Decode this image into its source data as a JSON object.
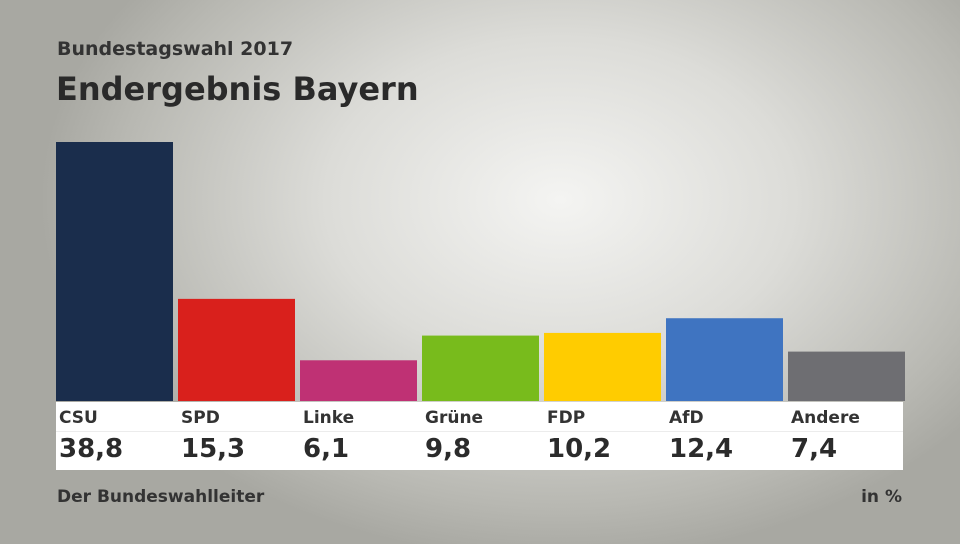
{
  "subtitle": "Bundestagswahl 2017",
  "title": "Endergebnis Bayern",
  "source": "Der Bundeswahlleiter",
  "unit": "in %",
  "chart_data": {
    "type": "bar",
    "title": "Endergebnis Bayern",
    "subtitle": "Bundestagswahl 2017",
    "categories": [
      "CSU",
      "SPD",
      "Linke",
      "Grüne",
      "FDP",
      "AfD",
      "Andere"
    ],
    "values": [
      38.8,
      15.3,
      6.1,
      9.8,
      10.2,
      12.4,
      7.4
    ],
    "value_labels": [
      "38,8",
      "15,3",
      "6,1",
      "9,8",
      "10,2",
      "12,4",
      "7,4"
    ],
    "colors": [
      "#1a2d4c",
      "#d9201c",
      "#bf3174",
      "#78bb1c",
      "#ffcc00",
      "#3f74c1",
      "#6e6e72"
    ],
    "unit": "in %",
    "ylim": [
      0,
      38.8
    ],
    "grid": false
  }
}
